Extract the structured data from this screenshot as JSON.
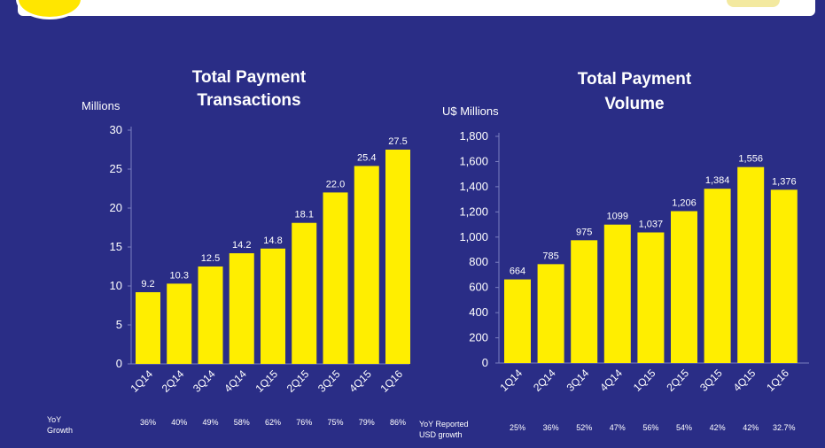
{
  "theme": {
    "background": "#2a2d86",
    "bar_color": "#ffee00",
    "text_color": "#ffffff"
  },
  "chart_data": [
    {
      "type": "bar",
      "title_lines": [
        "Total Payment",
        "Transactions"
      ],
      "unit_label": "Millions",
      "categories": [
        "1Q14",
        "2Q14",
        "3Q14",
        "4Q14",
        "1Q15",
        "2Q15",
        "3Q15",
        "4Q15",
        "1Q16"
      ],
      "values": [
        9.2,
        10.3,
        12.5,
        14.2,
        14.8,
        18.1,
        22.0,
        25.4,
        27.5
      ],
      "value_labels": [
        "9.2",
        "10.3",
        "12.5",
        "14.2",
        "14.8",
        "18.1",
        "22.0",
        "25.4",
        "27.5"
      ],
      "ylim": [
        0,
        30
      ],
      "yticks": [
        0,
        5,
        10,
        15,
        20,
        25,
        30
      ],
      "ytick_labels": [
        "0",
        "5",
        "10",
        "15",
        "20",
        "25",
        "30"
      ],
      "grid": false,
      "yoy_label_lines": [
        "YoY",
        "Growth"
      ],
      "yoy_values": [
        "36%",
        "40%",
        "49%",
        "58%",
        "62%",
        "76%",
        "75%",
        "79%",
        "86%"
      ]
    },
    {
      "type": "bar",
      "title_lines": [
        "Total Payment",
        "Volume"
      ],
      "unit_label": "U$ Millions",
      "categories": [
        "1Q14",
        "2Q14",
        "3Q14",
        "4Q14",
        "1Q15",
        "2Q15",
        "3Q15",
        "4Q15",
        "1Q16"
      ],
      "values": [
        664,
        785,
        975,
        1099,
        1037,
        1206,
        1384,
        1556,
        1376
      ],
      "value_labels": [
        "664",
        "785",
        "975",
        "1099",
        "1,037",
        "1,206",
        "1,384",
        "1,556",
        "1,376"
      ],
      "ylim": [
        0,
        1800
      ],
      "yticks": [
        0,
        200,
        400,
        600,
        800,
        1000,
        1200,
        1400,
        1600,
        1800
      ],
      "ytick_labels": [
        "0",
        "200",
        "400",
        "600",
        "800",
        "1,000",
        "1,200",
        "1,400",
        "1,600",
        "1,800"
      ],
      "grid": false,
      "yoy_label_lines": [
        "YoY Reported",
        "USD growth"
      ],
      "yoy_values": [
        "25%",
        "36%",
        "52%",
        "47%",
        "56%",
        "54%",
        "42%",
        "42%",
        "32.7%"
      ]
    }
  ]
}
